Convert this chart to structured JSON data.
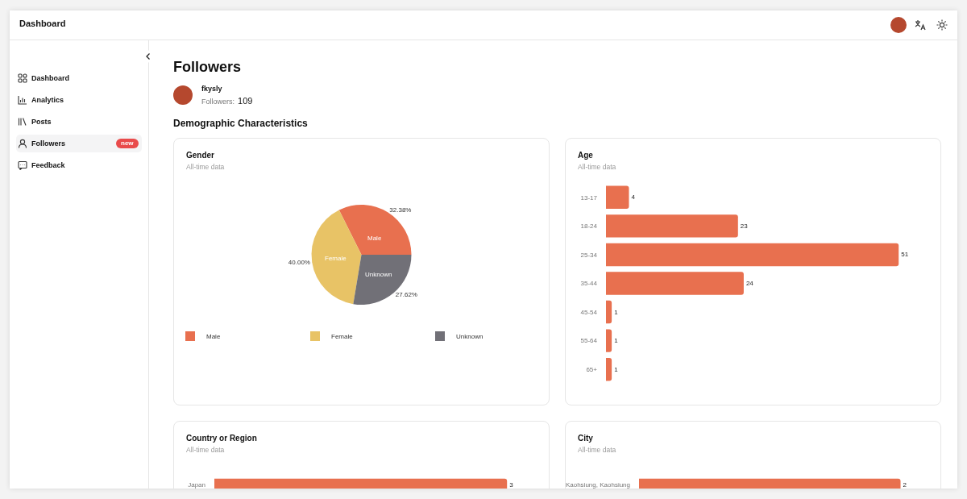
{
  "chart_data": [
    {
      "type": "other",
      "title": "Followers",
      "annotations": [
        "Dashboard",
        "Dashboard",
        "Analytics",
        "Posts",
        "Followers",
        "new",
        "Feedback",
        "fkysly",
        "Followers:",
        "109",
        "Demographic Characteristics"
      ]
    },
    {
      "type": "pie",
      "title": "Gender",
      "subtitle": "All-time data",
      "categories": [
        "Male",
        "Female",
        "Unknown"
      ],
      "values": [
        32.38,
        40.0,
        27.62
      ],
      "value_labels": [
        "32.38%",
        "40.00%",
        "27.62%"
      ],
      "colors": [
        "#e8704f",
        "#e8c366",
        "#717077"
      ],
      "legend": "bottom"
    },
    {
      "type": "bar",
      "orientation": "horizontal",
      "title": "Age",
      "subtitle": "All-time data",
      "categories": [
        "13-17",
        "18-24",
        "25-34",
        "35-44",
        "45-54",
        "55-64",
        "65+"
      ],
      "values": [
        4,
        23,
        51,
        24,
        1,
        1,
        1
      ],
      "color": "#e8704f",
      "data_labels": true
    },
    {
      "type": "bar",
      "orientation": "horizontal",
      "title": "Country or Region",
      "subtitle": "All-time data",
      "categories": [
        "Japan"
      ],
      "values": [
        3
      ],
      "color": "#e8704f",
      "data_labels": true
    },
    {
      "type": "bar",
      "orientation": "horizontal",
      "title": "City",
      "subtitle": "All-time data",
      "categories": [
        "Kaohsiung, Kaohsiung"
      ],
      "values": [
        2
      ],
      "color": "#e8704f",
      "data_labels": true
    }
  ]
}
